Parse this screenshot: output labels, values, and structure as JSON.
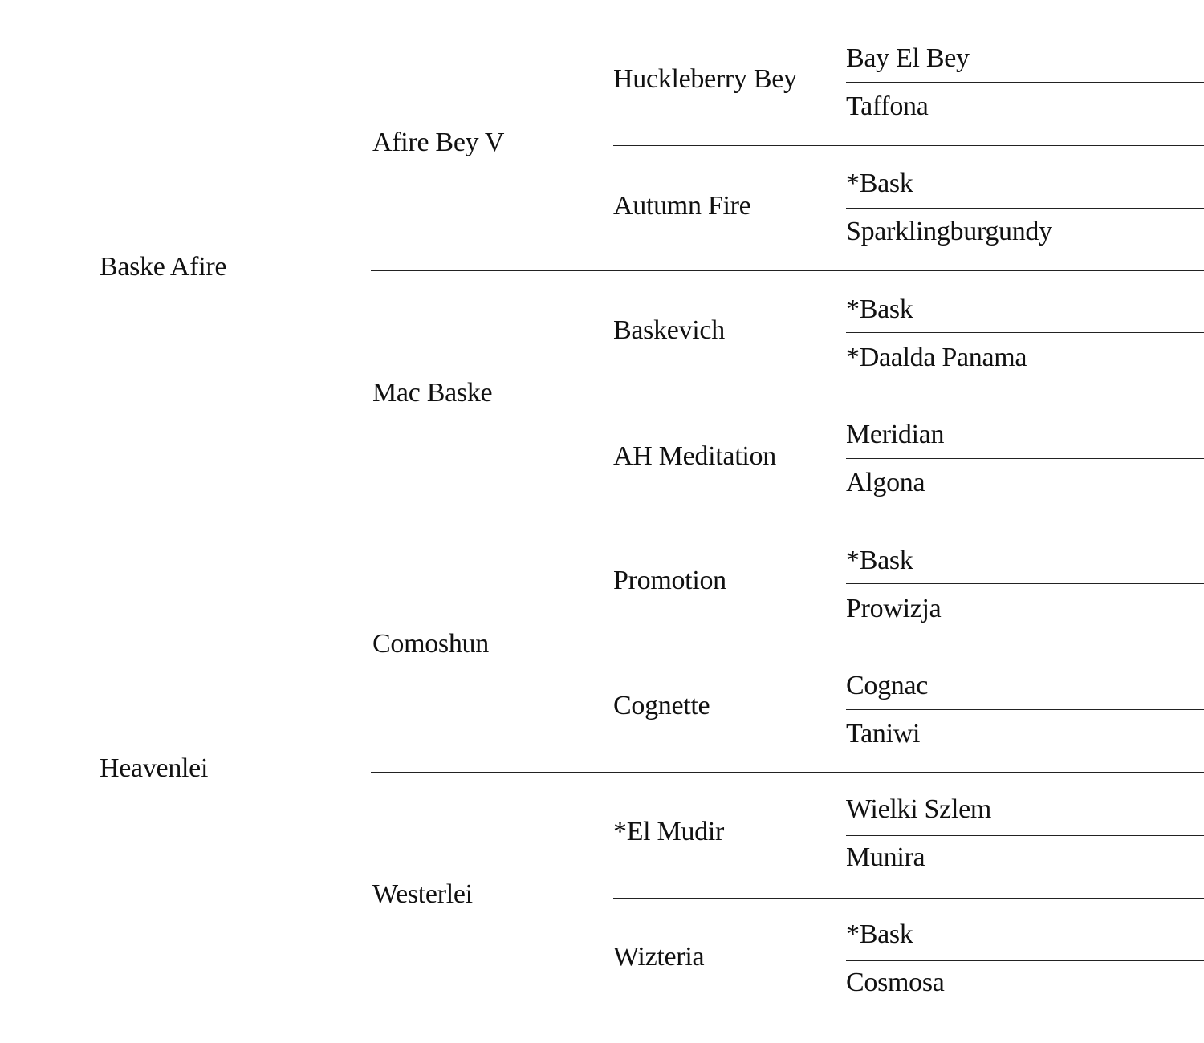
{
  "pedigree": {
    "gen1": [
      "Baske Afire",
      "Heavenlei"
    ],
    "gen2": [
      "Afire Bey V",
      "Mac Baske",
      "Comoshun",
      "Westerlei"
    ],
    "gen3": [
      "Huckleberry Bey",
      "Autumn Fire",
      "Baskevich",
      "AH Meditation",
      "Promotion",
      "Cognette",
      "*El Mudir",
      "Wizteria"
    ],
    "gen4": [
      "Bay El Bey",
      "Taffona",
      "*Bask",
      "Sparklingburgundy",
      "*Bask",
      "*Daalda Panama",
      "Meridian",
      "Algona",
      "*Bask",
      "Prowizja",
      "Cognac",
      "Taniwi",
      "Wielki Szlem",
      "Munira",
      "*Bask",
      "Cosmosa"
    ]
  }
}
